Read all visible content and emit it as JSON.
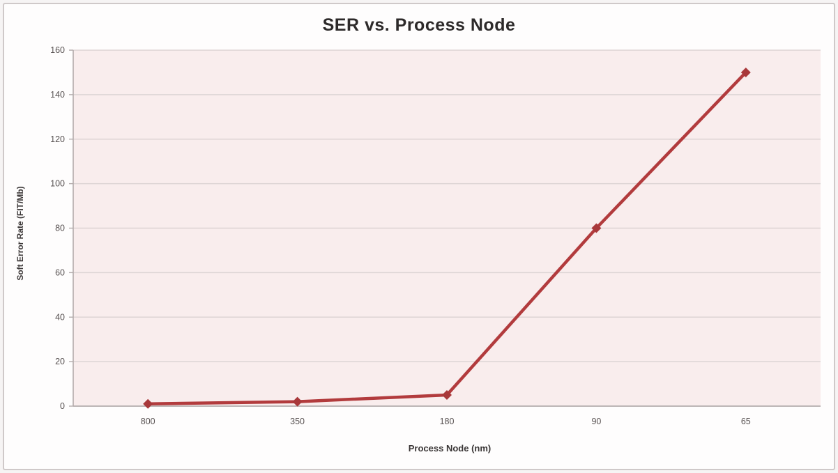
{
  "chart_data": {
    "type": "line",
    "title": "SER vs. Process Node",
    "xlabel": "Process Node (nm)",
    "ylabel": "Soft Error Rate (FIT/Mb)",
    "categories": [
      "800",
      "350",
      "180",
      "90",
      "65"
    ],
    "series": [
      {
        "name": "SER",
        "values": [
          1,
          2,
          5,
          80,
          150
        ]
      }
    ],
    "ylim": [
      0,
      160
    ],
    "y_ticks": [
      0,
      20,
      40,
      60,
      80,
      100,
      120,
      140,
      160
    ],
    "grid": "horizontal",
    "legend_position": "none",
    "marker": "diamond",
    "styles": {
      "line_color": "#b23b3d",
      "marker_color": "#a8383a",
      "plot_background": "#f9eded",
      "gridline_color": "#ddd4d4",
      "axis_line_color": "#b3abab",
      "tick_label_color": "#575151",
      "title_color": "#2d2a2a"
    }
  }
}
